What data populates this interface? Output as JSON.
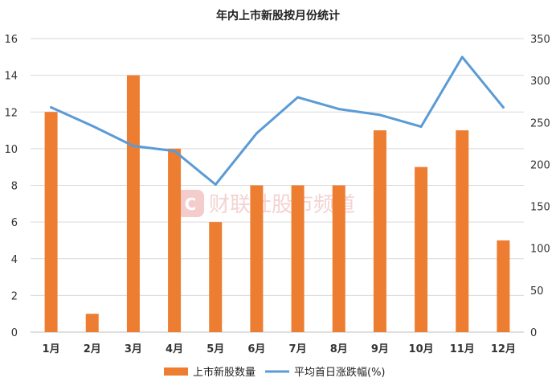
{
  "watermark": {
    "icon_letter": "C",
    "text": "财联社股市频道"
  },
  "chart_data": {
    "type": "bar",
    "title": "年内上市新股按月份统计",
    "categories": [
      "1月",
      "2月",
      "3月",
      "4月",
      "5月",
      "6月",
      "7月",
      "8月",
      "9月",
      "10月",
      "11月",
      "12月"
    ],
    "series": [
      {
        "name": "上市新股数量",
        "type": "bar",
        "axis": "left",
        "color": "#ed7d31",
        "values": [
          12,
          1,
          14,
          10,
          6,
          8,
          8,
          8,
          11,
          9,
          11,
          5
        ]
      },
      {
        "name": "平均首日涨跌幅(%)",
        "type": "line",
        "axis": "right",
        "color": "#5b9bd5",
        "values": [
          268,
          246,
          222,
          216,
          176,
          237,
          280,
          266,
          259,
          245,
          328,
          268
        ]
      }
    ],
    "y_left": {
      "min": 0,
      "max": 16,
      "step": 2
    },
    "y_right": {
      "min": 0,
      "max": 350,
      "step": 50
    },
    "grid": true,
    "legend_position": "bottom"
  }
}
